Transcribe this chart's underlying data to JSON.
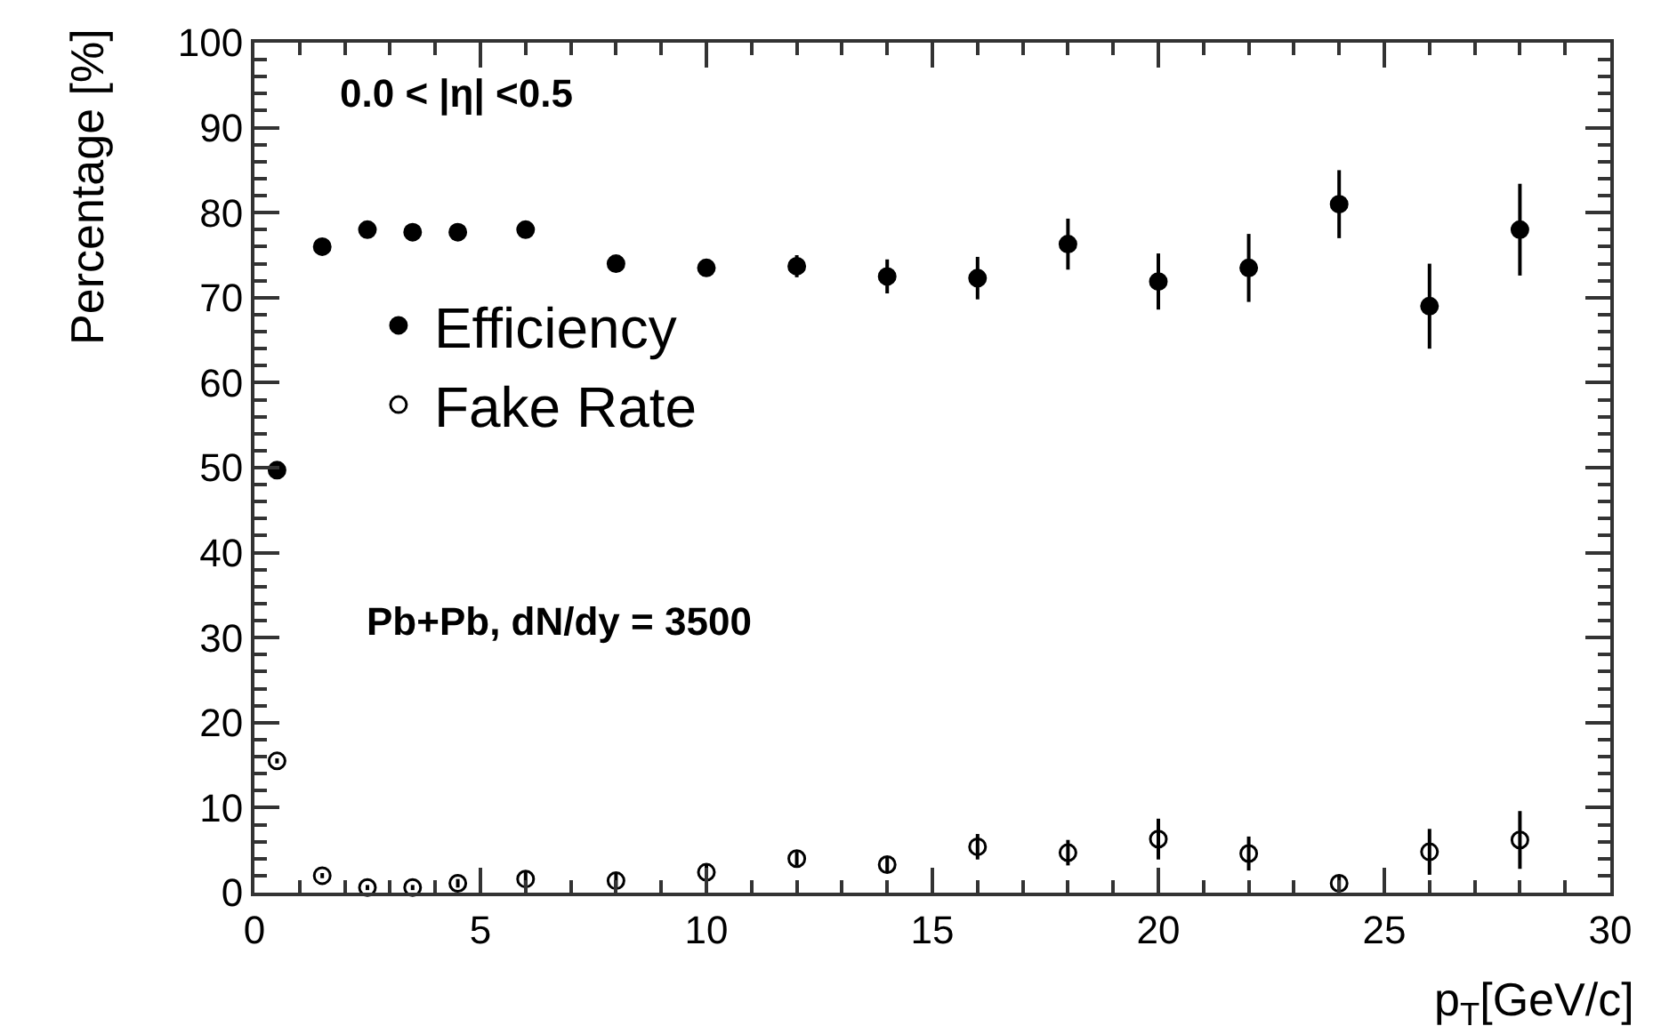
{
  "chart_data": {
    "type": "scatter",
    "xlabel": "p$_{T}$[GeV/c]",
    "ylabel": "Percentage [%]",
    "x": [
      0.5,
      1.5,
      2.5,
      3.5,
      4.5,
      6,
      8,
      10,
      12,
      14,
      16,
      18,
      20,
      22,
      24,
      26,
      28
    ],
    "series": [
      {
        "name": "Efficiency",
        "color": "#000000",
        "marker": "circle",
        "values": [
          49.7,
          76,
          78,
          77.7,
          77.7,
          78,
          74,
          73.5,
          73.7,
          72.5,
          72.3,
          76.3,
          71.9,
          73.5,
          81,
          69,
          78
        ],
        "errors": [
          0.5,
          0.5,
          0.5,
          0.5,
          0.5,
          0.5,
          0.7,
          1,
          1.3,
          2,
          2.5,
          3,
          3.3,
          4,
          4,
          5,
          5.4
        ]
      },
      {
        "name": "Fake Rate",
        "color": "#000000",
        "marker": "circle-open",
        "values": [
          15.5,
          2,
          0.6,
          0.6,
          1.1,
          1.6,
          1.4,
          2.4,
          4,
          3.3,
          5.4,
          4.7,
          6.3,
          4.6,
          1.1,
          4.8,
          6.2
        ],
        "errors": [
          0.3,
          0.3,
          0.3,
          0.3,
          0.5,
          0.8,
          0.8,
          1,
          0.8,
          0.8,
          1.5,
          1.5,
          2.4,
          2,
          0.8,
          2.7,
          3.4
        ]
      }
    ],
    "xlim": [
      0,
      30
    ],
    "xticks": [
      0,
      5,
      10,
      15,
      20,
      25,
      30
    ],
    "ylim": [
      0,
      100
    ],
    "yticks": [
      0,
      10,
      20,
      30,
      40,
      50,
      60,
      70,
      80,
      90,
      100
    ],
    "annotations": [
      "0.0 < |η| <0.5",
      "Pb+Pb, dN/dy = 3500"
    ],
    "legend": "left",
    "grid": false
  }
}
